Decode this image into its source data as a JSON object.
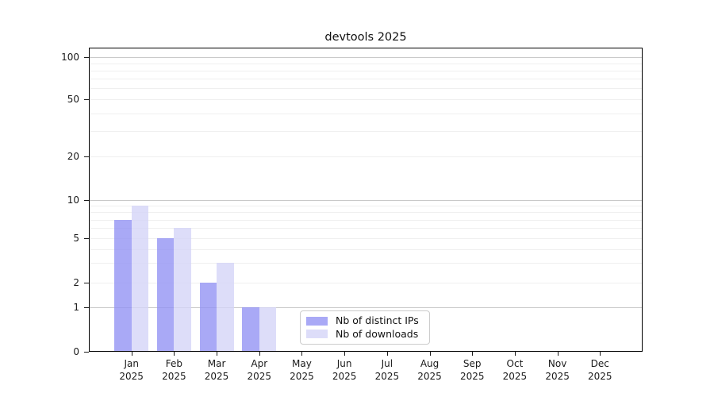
{
  "title": "devtools 2025",
  "colors": {
    "distinct_ips": "rgba(148,148,244,0.8)",
    "downloads": "rgba(212,212,247,0.8)",
    "distinct_ips_hex": "#a9a9f6",
    "downloads_hex": "#dcdcf8",
    "grid_major": "#c9c9c9",
    "grid_minor": "#efefef",
    "spine": "#000000",
    "legend_border": "#cccccc"
  },
  "legend": {
    "items": [
      {
        "label": "Nb of distinct IPs",
        "color_key": "distinct_ips"
      },
      {
        "label": "Nb of downloads",
        "color_key": "downloads"
      }
    ]
  },
  "chart_data": {
    "type": "bar",
    "title": "devtools 2025",
    "categories": [
      "Jan",
      "Feb",
      "Mar",
      "Apr",
      "May",
      "Jun",
      "Jul",
      "Aug",
      "Sep",
      "Oct",
      "Nov",
      "Dec"
    ],
    "category_year": "2025",
    "series": [
      {
        "name": "Nb of distinct IPs",
        "key": "distinct_ips",
        "values": [
          7,
          5,
          2,
          1,
          0,
          0,
          0,
          0,
          0,
          0,
          0,
          0
        ]
      },
      {
        "name": "Nb of downloads",
        "key": "downloads",
        "values": [
          9,
          6,
          3,
          1,
          0,
          0,
          0,
          0,
          0,
          0,
          0,
          0
        ]
      }
    ],
    "xlabel": "",
    "ylabel": "",
    "yscale": "log-like",
    "ylim": [
      0,
      120
    ],
    "ytick_labels": [
      "0",
      "1",
      "2",
      "5",
      "10",
      "20",
      "50",
      "100"
    ],
    "ytick_values": [
      0,
      1,
      2,
      5,
      10,
      20,
      50,
      100
    ],
    "ygrid_major_values": [
      1,
      10,
      100
    ],
    "ygrid_minor_values": [
      2,
      3,
      4,
      5,
      6,
      7,
      8,
      9,
      20,
      30,
      40,
      50,
      60,
      70,
      80,
      90
    ],
    "grid": "horizontal",
    "legend_position": "lower center"
  }
}
